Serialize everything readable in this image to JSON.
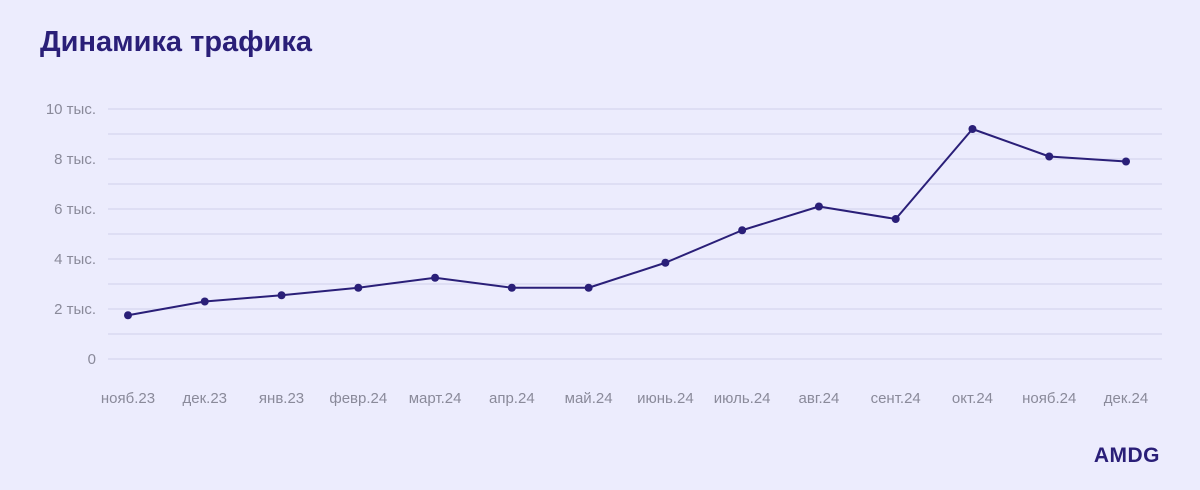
{
  "chart_data": {
    "type": "line",
    "title": "Динамика трафика",
    "categories": [
      "нояб.23",
      "дек.23",
      "янв.23",
      "февр.24",
      "март.24",
      "апр.24",
      "май.24",
      "июнь.24",
      "июль.24",
      "авг.24",
      "сент.24",
      "окт.24",
      "нояб.24",
      "дек.24"
    ],
    "series": [
      {
        "values": [
          1750,
          2300,
          2550,
          2850,
          3250,
          2850,
          2850,
          3850,
          5150,
          6100,
          5600,
          9200,
          8100,
          7900
        ]
      }
    ],
    "ylim": [
      0,
      10000
    ],
    "yticks": [
      {
        "value": 0,
        "label": "0"
      },
      {
        "value": 2000,
        "label": "2 тыс."
      },
      {
        "value": 4000,
        "label": "4 тыс."
      },
      {
        "value": 6000,
        "label": "6 тыс."
      },
      {
        "value": 8000,
        "label": "8 тыс."
      },
      {
        "value": 10000,
        "label": "10 тыс."
      }
    ],
    "minor_grid_step": 1000,
    "grid": true,
    "colors": {
      "line": "#2a1f78",
      "grid": "#d6d6ef",
      "background": "#ececfd"
    }
  },
  "brand": {
    "logo_text": "AMDG"
  }
}
